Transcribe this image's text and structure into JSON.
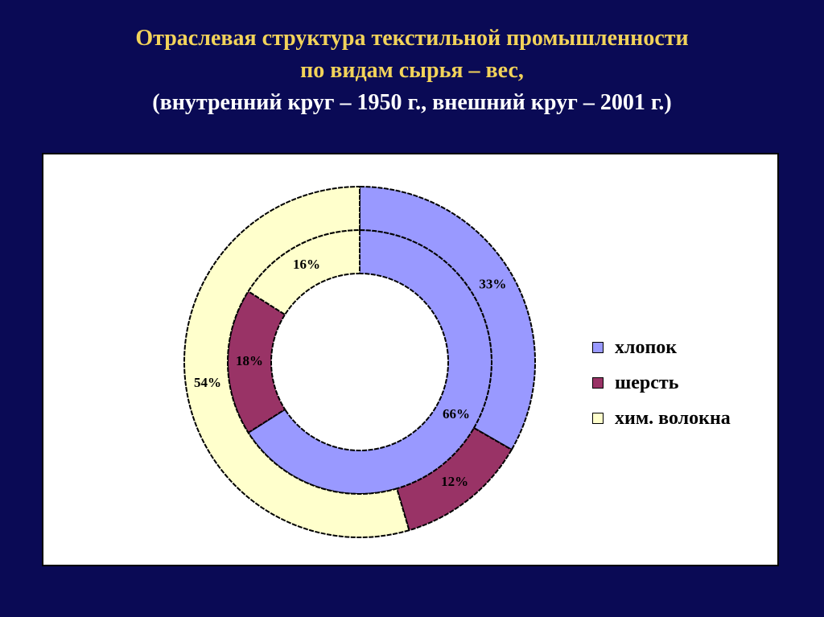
{
  "title": {
    "line1": "Отраслевая структура текстильной промышленности",
    "line2": "по видам сырья – вес,",
    "line3": "(внутренний круг – 1950 г., внешний круг – 2001 г.)"
  },
  "chart_data": {
    "type": "doughnut",
    "categories": [
      "хлопок",
      "шерсть",
      "хим. волокна"
    ],
    "colors": [
      "#9999ff",
      "#993366",
      "#ffffcc"
    ],
    "series": [
      {
        "values": [
          66,
          18,
          16
        ],
        "labels": [
          "66%",
          "18%",
          "16%"
        ]
      },
      {
        "values": [
          33,
          12,
          54
        ],
        "labels": [
          "33%",
          "12%",
          "54%"
        ]
      }
    ],
    "legend": {
      "position": "right"
    }
  }
}
